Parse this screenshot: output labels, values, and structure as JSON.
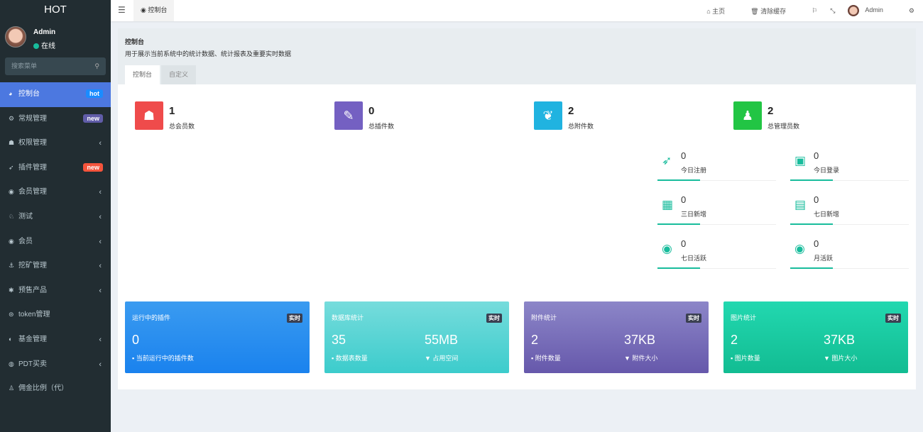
{
  "app": {
    "logo": "HOT"
  },
  "user": {
    "name": "Admin",
    "status": "在线"
  },
  "search": {
    "placeholder": "搜索菜单"
  },
  "sidebar": {
    "items": [
      {
        "label": "控制台",
        "icon": "dashboard-icon",
        "badge": "hot",
        "badge_color": "#1a8cff",
        "active": true
      },
      {
        "label": "常规管理",
        "icon": "cogs-icon",
        "badge": "new",
        "badge_color": "#605ca8"
      },
      {
        "label": "权限管理",
        "icon": "group-icon",
        "expandable": true
      },
      {
        "label": "插件管理",
        "icon": "rocket-icon",
        "badge": "new",
        "badge_color": "#f5543c"
      },
      {
        "label": "会员管理",
        "icon": "user-circle-icon",
        "expandable": true
      },
      {
        "label": "测试",
        "icon": "test-icon",
        "expandable": true
      },
      {
        "label": "会员",
        "icon": "user-circle-icon",
        "expandable": true
      },
      {
        "label": "挖矿管理",
        "icon": "anchor-icon",
        "expandable": true
      },
      {
        "label": "预售产品",
        "icon": "yelp-icon",
        "expandable": true
      },
      {
        "label": "token管理",
        "icon": "token-icon"
      },
      {
        "label": "基金管理",
        "icon": "adjust-icon",
        "expandable": true
      },
      {
        "label": "PDT买卖",
        "icon": "compass-icon",
        "expandable": true
      },
      {
        "label": "佣金比例（代）",
        "icon": "child-icon"
      }
    ]
  },
  "header": {
    "tab": "控制台",
    "home": "主页",
    "clear_cache": "清除缓存",
    "user": "Admin"
  },
  "panel": {
    "title": "控制台",
    "desc": "用于展示当前系统中的统计数据、统计报表及重要实时数据",
    "tabs": [
      "控制台",
      "自定义"
    ]
  },
  "stats": [
    {
      "value": "1",
      "label": "总会员数",
      "color": "#ef4b4b",
      "icon": "users-icon"
    },
    {
      "value": "0",
      "label": "总插件数",
      "color": "#7460c2",
      "icon": "magic-icon"
    },
    {
      "value": "2",
      "label": "总附件数",
      "color": "#20b3e0",
      "icon": "leaf-icon"
    },
    {
      "value": "2",
      "label": "总管理员数",
      "color": "#22c544",
      "icon": "user-icon"
    }
  ],
  "mini_stats": [
    {
      "value": "0",
      "label": "今日注册",
      "icon": "rocket-icon"
    },
    {
      "value": "0",
      "label": "今日登录",
      "icon": "vcard-icon"
    },
    {
      "value": "0",
      "label": "三日新增",
      "icon": "calendar-icon"
    },
    {
      "value": "0",
      "label": "七日新增",
      "icon": "calendar-plus-icon"
    },
    {
      "value": "0",
      "label": "七日活跃",
      "icon": "user-circle-icon"
    },
    {
      "value": "0",
      "label": "月活跃",
      "icon": "user-circle-icon"
    }
  ],
  "cards": [
    {
      "title": "运行中的插件",
      "tag": "实时",
      "v1": "0",
      "l1": "当前运行中的插件数",
      "v2": "",
      "l2": "",
      "bg": "linear-gradient(#3a9bf0,#1a82ee)"
    },
    {
      "title": "数据库统计",
      "tag": "实时",
      "v1": "35",
      "l1": "数据表数量",
      "v2": "55MB",
      "l2": "占用空间",
      "bg": "linear-gradient(#76dcdc,#3ccccc)"
    },
    {
      "title": "附件统计",
      "tag": "实时",
      "v1": "2",
      "l1": "附件数量",
      "v2": "37KB",
      "l2": "附件大小",
      "bg": "linear-gradient(#8c86c8,#6658ab)"
    },
    {
      "title": "图片统计",
      "tag": "实时",
      "v1": "2",
      "l1": "图片数量",
      "v2": "37KB",
      "l2": "图片大小",
      "bg": "linear-gradient(#22d8b0,#12bc92)"
    }
  ]
}
